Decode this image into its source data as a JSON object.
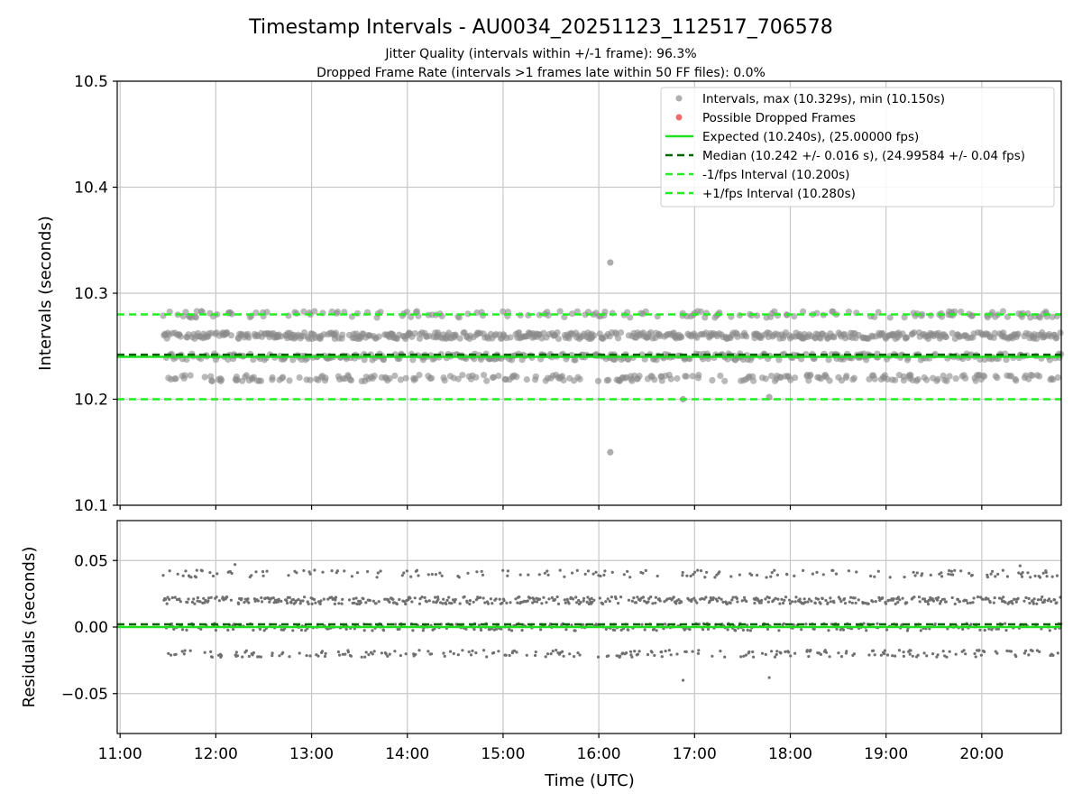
{
  "chart_data": [
    {
      "type": "scatter",
      "title": "Timestamp Intervals - AU0034_20251123_112517_706578",
      "subtitle_lines": [
        "Jitter Quality (intervals within +/-1 frame): 96.3%",
        "Dropped Frame Rate (intervals >1 frames late within 50 FF files): 0.0%"
      ],
      "ylabel": "Intervals (seconds)",
      "ylim": [
        10.1,
        10.5
      ],
      "yticks": [
        10.1,
        10.2,
        10.3,
        10.4,
        10.5
      ],
      "ytick_labels": [
        "10.1",
        "10.2",
        "10.3",
        "10.4",
        "10.5"
      ],
      "xlim_hours": [
        10.97,
        20.83
      ],
      "grid": true,
      "legend_position": "top-right",
      "series": [
        {
          "name": "Intervals, max (10.329s), min (10.150s)",
          "kind": "points",
          "color": "#808080",
          "levels": [
            10.22,
            10.24,
            10.26,
            10.28
          ],
          "start_hour": 11.45,
          "end_hour": 20.83
        },
        {
          "name": "Possible Dropped Frames",
          "kind": "points",
          "color": "#f26b6b",
          "points": []
        },
        {
          "name": "Expected (10.240s), (25.00000 fps)",
          "kind": "hline",
          "y": 10.24,
          "color": "#1ee01e"
        },
        {
          "name": "Median (10.242 +/- 0.016 s), (24.99584 +/- 0.04 fps)",
          "kind": "hline",
          "y": 10.242,
          "color": "#006400"
        },
        {
          "name": "-1/fps Interval (10.200s)",
          "kind": "hline",
          "y": 10.2,
          "color": "#22ee22"
        },
        {
          "name": "+1/fps Interval (10.280s)",
          "kind": "hline",
          "y": 10.28,
          "color": "#22ee22"
        }
      ],
      "outliers": [
        {
          "x_hour": 16.12,
          "y": 10.329
        },
        {
          "x_hour": 16.12,
          "y": 10.15
        },
        {
          "x_hour": 16.88,
          "y": 10.2
        },
        {
          "x_hour": 17.78,
          "y": 10.202
        }
      ]
    },
    {
      "type": "scatter",
      "ylabel": "Residuals (seconds)",
      "xlabel": "Time (UTC)",
      "ylim": [
        -0.08,
        0.08
      ],
      "yticks": [
        -0.05,
        0.0,
        0.05
      ],
      "ytick_labels": [
        "−0.05",
        "0.00",
        "0.05"
      ],
      "xticks_hours": [
        11,
        12,
        13,
        14,
        15,
        16,
        17,
        18,
        19,
        20
      ],
      "xtick_labels": [
        "11:00",
        "12:00",
        "13:00",
        "14:00",
        "15:00",
        "16:00",
        "17:00",
        "18:00",
        "19:00",
        "20:00"
      ],
      "xlim_hours": [
        10.97,
        20.83
      ],
      "grid": true,
      "series": [
        {
          "kind": "points",
          "color": "#707070",
          "levels": [
            -0.02,
            0.0,
            0.02,
            0.04
          ],
          "start_hour": 11.45,
          "end_hour": 20.83
        },
        {
          "kind": "hline",
          "y": 0.0,
          "color": "#1ee01e"
        },
        {
          "kind": "hline",
          "y": 0.002,
          "color": "#006400"
        }
      ],
      "outliers": [
        {
          "x_hour": 16.88,
          "y": -0.04
        },
        {
          "x_hour": 17.78,
          "y": -0.038
        },
        {
          "x_hour": 12.2,
          "y": 0.047
        },
        {
          "x_hour": 20.4,
          "y": 0.046
        }
      ]
    }
  ]
}
